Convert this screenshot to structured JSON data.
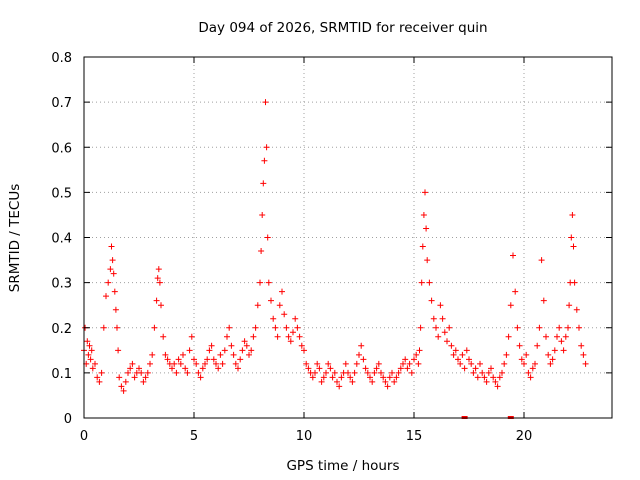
{
  "chart_data": {
    "type": "scatter",
    "title": "Day 094 of 2026, SRMTID for receiver quin",
    "xlabel": "GPS time / hours",
    "ylabel": "SRMTID / TECUs",
    "xlim": [
      0,
      24
    ],
    "ylim": [
      0,
      0.8
    ],
    "x_ticks": [
      0,
      5,
      10,
      15,
      20
    ],
    "x_tick_labels": [
      "0",
      "5",
      "10",
      "15",
      "20"
    ],
    "y_ticks": [
      0,
      0.1,
      0.2,
      0.3,
      0.4,
      0.5,
      0.6,
      0.7,
      0.8
    ],
    "y_tick_labels": [
      "0",
      "0.1",
      "0.2",
      "0.3",
      "0.4",
      "0.5",
      "0.6",
      "0.7",
      "0.8"
    ],
    "grid": true,
    "marker": "plus",
    "series": [
      {
        "name": "SRMTID",
        "color": "#ff0000",
        "x": [
          0.0,
          0.05,
          0.1,
          0.15,
          0.2,
          0.25,
          0.3,
          0.35,
          0.4,
          0.5,
          0.6,
          0.7,
          0.8,
          0.9,
          1.0,
          1.1,
          1.2,
          1.25,
          1.3,
          1.35,
          1.4,
          1.45,
          1.5,
          1.55,
          1.6,
          1.7,
          1.8,
          1.9,
          2.0,
          2.1,
          2.2,
          2.3,
          2.4,
          2.5,
          2.6,
          2.7,
          2.8,
          2.9,
          3.0,
          3.1,
          3.2,
          3.3,
          3.35,
          3.4,
          3.45,
          3.5,
          3.6,
          3.7,
          3.8,
          3.9,
          4.0,
          4.1,
          4.2,
          4.3,
          4.4,
          4.5,
          4.6,
          4.7,
          4.8,
          4.9,
          5.0,
          5.1,
          5.2,
          5.3,
          5.4,
          5.5,
          5.6,
          5.7,
          5.8,
          5.9,
          6.0,
          6.1,
          6.2,
          6.3,
          6.4,
          6.5,
          6.6,
          6.7,
          6.8,
          6.9,
          7.0,
          7.1,
          7.2,
          7.3,
          7.4,
          7.5,
          7.6,
          7.7,
          7.8,
          7.9,
          8.0,
          8.05,
          8.1,
          8.15,
          8.2,
          8.25,
          8.3,
          8.35,
          8.4,
          8.5,
          8.6,
          8.7,
          8.8,
          8.9,
          9.0,
          9.1,
          9.2,
          9.3,
          9.4,
          9.5,
          9.6,
          9.7,
          9.8,
          9.9,
          10.0,
          10.1,
          10.2,
          10.3,
          10.4,
          10.5,
          10.6,
          10.7,
          10.8,
          10.9,
          11.0,
          11.1,
          11.2,
          11.3,
          11.4,
          11.5,
          11.6,
          11.7,
          11.8,
          11.9,
          12.0,
          12.1,
          12.2,
          12.3,
          12.4,
          12.5,
          12.6,
          12.7,
          12.8,
          12.9,
          13.0,
          13.1,
          13.2,
          13.3,
          13.4,
          13.5,
          13.6,
          13.7,
          13.8,
          13.9,
          14.0,
          14.1,
          14.2,
          14.3,
          14.4,
          14.5,
          14.6,
          14.7,
          14.8,
          14.9,
          15.0,
          15.1,
          15.2,
          15.25,
          15.3,
          15.35,
          15.4,
          15.45,
          15.5,
          15.55,
          15.6,
          15.7,
          15.8,
          15.9,
          16.0,
          16.1,
          16.2,
          16.3,
          16.4,
          16.5,
          16.6,
          16.7,
          16.8,
          16.9,
          17.0,
          17.1,
          17.2,
          17.3,
          17.4,
          17.5,
          17.6,
          17.7,
          17.8,
          17.9,
          18.0,
          18.1,
          18.2,
          18.3,
          18.4,
          18.5,
          18.6,
          18.7,
          18.8,
          18.9,
          19.0,
          19.1,
          19.2,
          19.3,
          19.4,
          19.5,
          19.6,
          19.7,
          19.8,
          19.9,
          20.0,
          20.1,
          20.2,
          20.3,
          20.4,
          20.5,
          20.6,
          20.7,
          20.8,
          20.9,
          21.0,
          21.1,
          21.2,
          21.3,
          21.4,
          21.5,
          21.6,
          21.7,
          21.8,
          21.9,
          22.0,
          22.05,
          22.1,
          22.15,
          22.2,
          22.25,
          22.3,
          22.4,
          22.5,
          22.6,
          22.7,
          22.8
        ],
        "y": [
          0.15,
          0.2,
          0.12,
          0.17,
          0.14,
          0.16,
          0.13,
          0.15,
          0.11,
          0.12,
          0.09,
          0.08,
          0.1,
          0.2,
          0.27,
          0.3,
          0.33,
          0.38,
          0.35,
          0.32,
          0.28,
          0.24,
          0.2,
          0.15,
          0.09,
          0.07,
          0.06,
          0.08,
          0.1,
          0.11,
          0.12,
          0.09,
          0.1,
          0.11,
          0.1,
          0.08,
          0.09,
          0.1,
          0.12,
          0.14,
          0.2,
          0.26,
          0.31,
          0.33,
          0.3,
          0.25,
          0.18,
          0.14,
          0.13,
          0.12,
          0.11,
          0.12,
          0.1,
          0.13,
          0.12,
          0.14,
          0.11,
          0.1,
          0.15,
          0.18,
          0.13,
          0.12,
          0.1,
          0.09,
          0.11,
          0.12,
          0.13,
          0.15,
          0.16,
          0.13,
          0.12,
          0.11,
          0.14,
          0.12,
          0.15,
          0.18,
          0.2,
          0.16,
          0.14,
          0.12,
          0.11,
          0.13,
          0.15,
          0.17,
          0.16,
          0.14,
          0.15,
          0.18,
          0.2,
          0.25,
          0.3,
          0.37,
          0.45,
          0.52,
          0.57,
          0.7,
          0.6,
          0.4,
          0.3,
          0.26,
          0.22,
          0.2,
          0.18,
          0.25,
          0.28,
          0.23,
          0.2,
          0.18,
          0.17,
          0.19,
          0.22,
          0.2,
          0.18,
          0.16,
          0.15,
          0.12,
          0.11,
          0.1,
          0.09,
          0.1,
          0.12,
          0.11,
          0.08,
          0.09,
          0.1,
          0.12,
          0.11,
          0.09,
          0.1,
          0.08,
          0.07,
          0.09,
          0.1,
          0.12,
          0.1,
          0.09,
          0.08,
          0.1,
          0.12,
          0.14,
          0.16,
          0.13,
          0.11,
          0.1,
          0.09,
          0.08,
          0.1,
          0.11,
          0.12,
          0.1,
          0.09,
          0.08,
          0.07,
          0.09,
          0.1,
          0.08,
          0.09,
          0.1,
          0.11,
          0.12,
          0.13,
          0.11,
          0.12,
          0.1,
          0.13,
          0.14,
          0.12,
          0.15,
          0.2,
          0.3,
          0.38,
          0.45,
          0.5,
          0.42,
          0.35,
          0.3,
          0.26,
          0.22,
          0.2,
          0.18,
          0.25,
          0.22,
          0.19,
          0.17,
          0.2,
          0.16,
          0.14,
          0.15,
          0.13,
          0.12,
          0.14,
          0.11,
          0.15,
          0.13,
          0.12,
          0.1,
          0.11,
          0.09,
          0.12,
          0.1,
          0.09,
          0.08,
          0.1,
          0.11,
          0.09,
          0.08,
          0.07,
          0.09,
          0.1,
          0.12,
          0.14,
          0.18,
          0.25,
          0.36,
          0.28,
          0.2,
          0.16,
          0.13,
          0.12,
          0.14,
          0.1,
          0.09,
          0.11,
          0.12,
          0.16,
          0.2,
          0.35,
          0.26,
          0.18,
          0.14,
          0.12,
          0.13,
          0.15,
          0.18,
          0.2,
          0.17,
          0.15,
          0.18,
          0.2,
          0.25,
          0.3,
          0.4,
          0.45,
          0.38,
          0.3,
          0.24,
          0.2,
          0.16,
          0.14,
          0.12
        ]
      }
    ],
    "zero_markers_x": [
      17.3,
      19.4
    ]
  }
}
